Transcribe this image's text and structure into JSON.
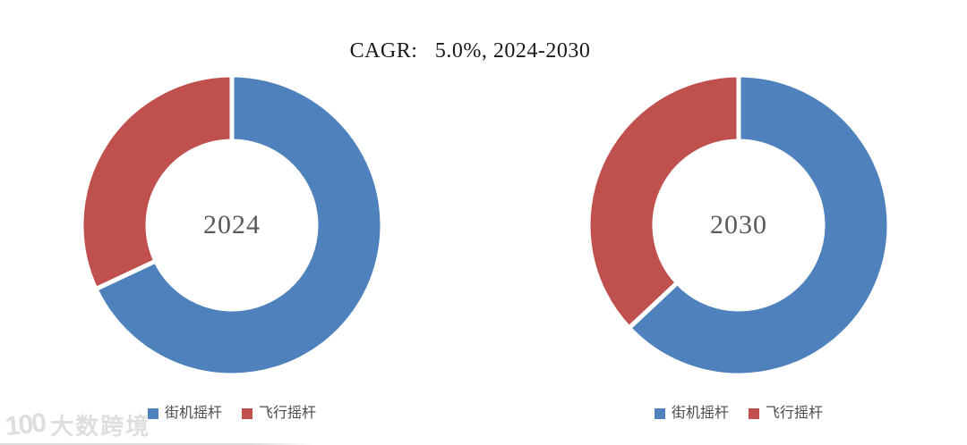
{
  "title": "CAGR:   5.0%, 2024-2030",
  "colors": {
    "arcade_blue": "#4f81bd",
    "flight_red": "#c0504d",
    "title_text": "#1a1a1a",
    "center_label_text": "#595959",
    "legend_text": "#4a4a4a",
    "watermark_gray": "#dedede"
  },
  "chart_data": [
    {
      "type": "pie",
      "subtype": "donut",
      "center_label": "2024",
      "start_angle_deg": 0,
      "direction": "clockwise",
      "units": "percent_share",
      "legend_position": "bottom",
      "series": [
        {
          "name": "街机摇杆",
          "value": 68,
          "color": "#4f81bd"
        },
        {
          "name": "飞行摇杆",
          "value": 32,
          "color": "#c0504d"
        }
      ]
    },
    {
      "type": "pie",
      "subtype": "donut",
      "center_label": "2030",
      "start_angle_deg": 0,
      "direction": "clockwise",
      "units": "percent_share",
      "legend_position": "bottom",
      "series": [
        {
          "name": "街机摇杆",
          "value": 63,
          "color": "#4f81bd"
        },
        {
          "name": "飞行摇杆",
          "value": 37,
          "color": "#c0504d"
        }
      ]
    }
  ],
  "watermark": {
    "logo": "100",
    "text": "大数跨境"
  }
}
